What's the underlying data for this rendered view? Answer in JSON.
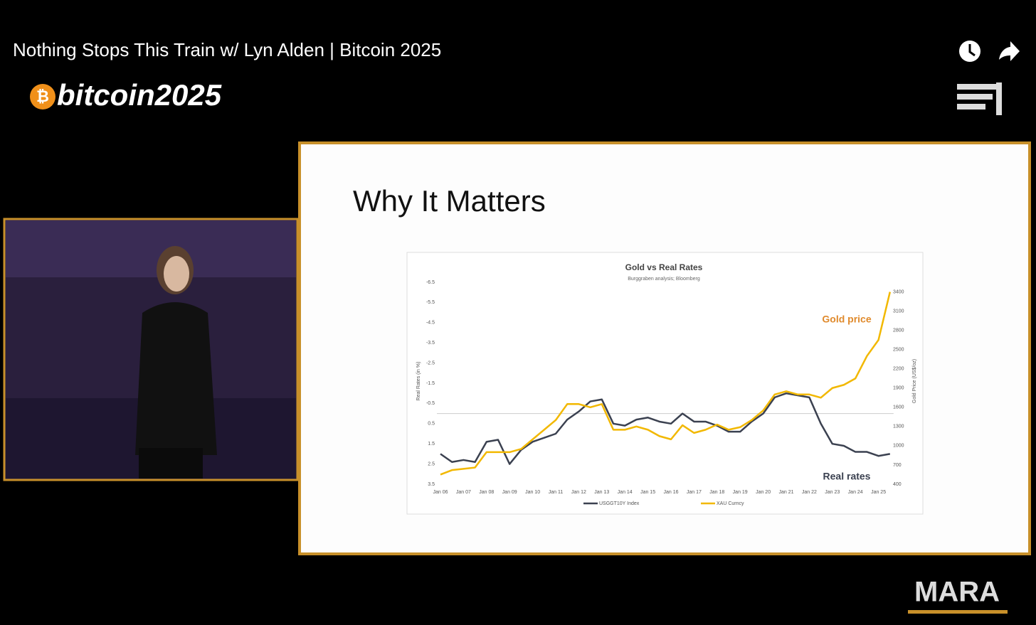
{
  "video_title": "Nothing Stops This Train w/ Lyn Alden | Bitcoin 2025",
  "logos": {
    "conference": "bitcoin2025",
    "sponsor": "MARA"
  },
  "slide": {
    "title": "Why It Matters"
  },
  "chart_data": {
    "type": "line",
    "title": "Gold vs Real Rates",
    "subtitle": "Burggraben analysis; Bloomberg",
    "y_label": "Real Rates (in %)",
    "y2_label": "Gold Price (US$/oz)",
    "annotations": [
      "Gold price",
      "Real rates"
    ],
    "categories": [
      "Jan 06",
      null,
      "Jan 07",
      null,
      "Jan 08",
      null,
      "Jan 09",
      null,
      "Jan 10",
      null,
      "Jan 11",
      null,
      "Jan 12",
      null,
      "Jan 13",
      null,
      "Jan 14",
      null,
      "Jan 15",
      null,
      "Jan 16",
      null,
      "Jan 17",
      null,
      "Jan 18",
      null,
      "Jan 19",
      null,
      "Jan 20",
      null,
      "Jan 21",
      null,
      "Jan 22",
      null,
      "Jan 23",
      null,
      "Jan 24",
      null,
      "Jan 25",
      null
    ],
    "series": [
      {
        "name": "USGGT10Y Index",
        "color": "#3b4150",
        "values": [
          2.0,
          2.4,
          2.3,
          2.4,
          1.4,
          1.3,
          2.5,
          1.8,
          1.4,
          1.2,
          1.0,
          0.3,
          -0.1,
          -0.6,
          -0.7,
          0.5,
          0.6,
          0.3,
          0.2,
          0.4,
          0.5,
          0.0,
          0.4,
          0.4,
          0.6,
          0.9,
          0.9,
          0.4,
          0.0,
          -0.8,
          -1.0,
          -0.9,
          -0.8,
          0.5,
          1.5,
          1.6,
          1.9,
          1.9,
          2.1,
          2.0
        ]
      },
      {
        "name": "XAU Curncy",
        "color": "#f2b800",
        "axis": "y2",
        "values": [
          550,
          620,
          640,
          660,
          900,
          900,
          900,
          950,
          1100,
          1250,
          1400,
          1650,
          1650,
          1600,
          1650,
          1250,
          1250,
          1300,
          1250,
          1150,
          1100,
          1320,
          1200,
          1250,
          1330,
          1250,
          1290,
          1400,
          1550,
          1800,
          1850,
          1800,
          1800,
          1750,
          1900,
          1950,
          2050,
          2400,
          2650,
          3400
        ]
      }
    ],
    "ylim": [
      3.5,
      -6.5
    ],
    "yticks": [
      -6.5,
      -5.5,
      -4.5,
      -3.5,
      -2.5,
      -1.5,
      -0.5,
      0.5,
      1.5,
      2.5,
      3.5
    ],
    "y2lim": [
      400,
      3550
    ],
    "y2ticks": [
      400,
      700,
      1000,
      1300,
      1600,
      1900,
      2200,
      2500,
      2800,
      3100,
      3400
    ],
    "legend": "bottom"
  }
}
